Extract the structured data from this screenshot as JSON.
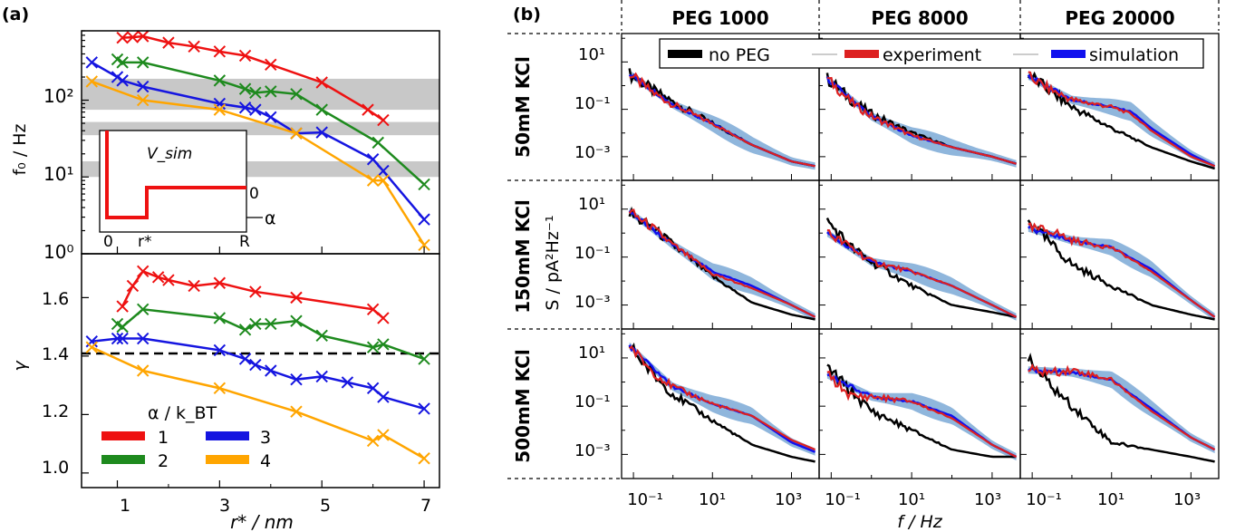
{
  "panel_a": {
    "label": "(a)",
    "top": {
      "ylabel": "f₀ / Hz",
      "yticks": [
        "10⁰",
        "10¹",
        "10²"
      ],
      "inset": {
        "title": "V_sim",
        "xticks": [
          "0",
          "r*",
          "R"
        ],
        "alpha_label": "α",
        "zero_label": "0"
      }
    },
    "bottom": {
      "ylabel": "γ",
      "yticks": [
        "1.0",
        "1.2",
        "1.4",
        "1.6"
      ],
      "xticks": [
        "1",
        "3",
        "5",
        "7"
      ],
      "xlabel": "r* / nm"
    },
    "legend": {
      "title": "α / k_BT",
      "entries": [
        "1",
        "2",
        "3",
        "4"
      ]
    }
  },
  "panel_b": {
    "label": "(b)",
    "columns": [
      "PEG 1000",
      "PEG 8000",
      "PEG 20000"
    ],
    "rows": [
      "50mM KCl",
      "150mM KCl",
      "500mM KCl"
    ],
    "legend": [
      "no PEG",
      "experiment",
      "simulation"
    ],
    "yticks": [
      "10¹",
      "10⁻¹",
      "10⁻³"
    ],
    "xticks": [
      "10⁻¹",
      "10¹",
      "10³"
    ],
    "xlabel": "f / Hz",
    "ylabel": "S / pA²Hz⁻¹"
  },
  "colors": {
    "alpha1": "#ee1111",
    "alpha2": "#1e8a1e",
    "alpha3": "#1515e0",
    "alpha4": "#ffa500",
    "no_peg": "#000000",
    "experiment": "#dd2020",
    "simulation": "#1010ee",
    "sim_band": "#8fb6dc",
    "gray_band": "#c8c8c8"
  },
  "chart_data": [
    {
      "type": "line",
      "panel": "a-top",
      "xlabel": "",
      "ylabel": "f₀ / Hz",
      "yscale": "log",
      "ylim": [
        1,
        800
      ],
      "xlim": [
        0.3,
        7.3
      ],
      "gray_bands_hz": [
        [
          75,
          190
        ],
        [
          35,
          52
        ],
        [
          10,
          16
        ]
      ],
      "series": [
        {
          "name": "1",
          "x": [
            1.1,
            1.3,
            1.5,
            2.0,
            2.5,
            3.0,
            3.5,
            4.0,
            5.0,
            5.9,
            6.2
          ],
          "y": [
            650,
            660,
            680,
            560,
            500,
            430,
            380,
            290,
            170,
            75,
            55
          ]
        },
        {
          "name": "2",
          "x": [
            1.0,
            1.1,
            1.5,
            3.0,
            3.5,
            3.7,
            4.0,
            4.5,
            5.0,
            6.1,
            7.0
          ],
          "y": [
            340,
            310,
            310,
            180,
            140,
            125,
            130,
            120,
            75,
            28,
            8
          ]
        },
        {
          "name": "3",
          "x": [
            0.5,
            1.0,
            1.1,
            1.5,
            3.0,
            3.5,
            3.7,
            4.0,
            4.5,
            5.0,
            6.0,
            6.2,
            7.0
          ],
          "y": [
            310,
            200,
            180,
            150,
            90,
            80,
            75,
            60,
            37,
            38,
            17,
            12,
            2.8
          ]
        },
        {
          "name": "4",
          "x": [
            0.5,
            1.5,
            3.0,
            4.5,
            6.0,
            6.2,
            7.0
          ],
          "y": [
            175,
            100,
            75,
            37,
            9,
            9,
            1.3
          ]
        }
      ]
    },
    {
      "type": "line",
      "panel": "a-bottom",
      "xlabel": "r* / nm",
      "ylabel": "γ",
      "ylim": [
        0.95,
        1.75
      ],
      "xlim": [
        0.3,
        7.3
      ],
      "reference_line": 1.4,
      "series": [
        {
          "name": "1",
          "x": [
            1.1,
            1.3,
            1.5,
            1.8,
            2.0,
            2.5,
            3.0,
            3.7,
            4.5,
            6.0,
            6.2
          ],
          "y": [
            1.57,
            1.64,
            1.69,
            1.67,
            1.66,
            1.64,
            1.65,
            1.62,
            1.6,
            1.56,
            1.53
          ]
        },
        {
          "name": "2",
          "x": [
            1.0,
            1.1,
            1.5,
            3.0,
            3.5,
            3.7,
            4.0,
            4.5,
            5.0,
            6.0,
            6.2,
            7.0
          ],
          "y": [
            1.51,
            1.5,
            1.56,
            1.53,
            1.49,
            1.51,
            1.51,
            1.52,
            1.47,
            1.43,
            1.44,
            1.39
          ]
        },
        {
          "name": "3",
          "x": [
            0.5,
            1.0,
            1.1,
            1.5,
            3.0,
            3.5,
            3.7,
            4.0,
            4.5,
            5.0,
            5.5,
            6.0,
            6.2,
            7.0
          ],
          "y": [
            1.45,
            1.46,
            1.46,
            1.46,
            1.42,
            1.39,
            1.37,
            1.35,
            1.32,
            1.33,
            1.31,
            1.29,
            1.26,
            1.22
          ]
        },
        {
          "name": "4",
          "x": [
            0.5,
            1.5,
            3.0,
            4.5,
            6.0,
            6.2,
            7.0
          ],
          "y": [
            1.43,
            1.35,
            1.29,
            1.21,
            1.11,
            1.13,
            1.05
          ]
        }
      ]
    },
    {
      "type": "line",
      "panel": "b",
      "xscale": "log",
      "yscale": "log",
      "xlim_log10": [
        -1.3,
        3.7
      ],
      "ylim_log10": [
        -4.0,
        2.2
      ],
      "xlabel": "f / Hz",
      "ylabel": "S / pA²Hz⁻¹",
      "grid": [
        {
          "row": "50mM KCl",
          "column": "PEG 1000",
          "no_peg": [
            [
              -1.1,
              0.5
            ],
            [
              -0.5,
              -0.2
            ],
            [
              0,
              -0.7
            ],
            [
              1,
              -1.6
            ],
            [
              2,
              -2.5
            ],
            [
              3,
              -3.2
            ],
            [
              3.6,
              -3.4
            ]
          ],
          "experiment": [
            [
              -1.1,
              0.5
            ],
            [
              -0.5,
              -0.3
            ],
            [
              0,
              -0.8
            ],
            [
              1,
              -1.6
            ],
            [
              2,
              -2.5
            ],
            [
              3,
              -3.2
            ],
            [
              3.6,
              -3.4
            ]
          ],
          "simulation": [
            [
              -1.1,
              0.5
            ],
            [
              0,
              -0.8
            ],
            [
              1,
              -1.6
            ],
            [
              2,
              -2.5
            ],
            [
              3,
              -3.2
            ],
            [
              3.6,
              -3.4
            ]
          ]
        },
        {
          "row": "50mM KCl",
          "column": "PEG 8000",
          "no_peg": [
            [
              -1.1,
              0.3
            ],
            [
              -0.5,
              -0.6
            ],
            [
              0,
              -1.2
            ],
            [
              1,
              -2.0
            ],
            [
              2,
              -2.6
            ],
            [
              3,
              -3.0
            ],
            [
              3.6,
              -3.3
            ]
          ],
          "experiment": [
            [
              -1.1,
              0.3
            ],
            [
              -0.5,
              -0.7
            ],
            [
              0,
              -1.3
            ],
            [
              1,
              -2.1
            ],
            [
              2,
              -2.6
            ],
            [
              3,
              -3.0
            ],
            [
              3.6,
              -3.3
            ]
          ],
          "simulation": [
            [
              -1.1,
              0.3
            ],
            [
              0,
              -1.3
            ],
            [
              1,
              -2.1
            ],
            [
              2,
              -2.6
            ],
            [
              3,
              -3.0
            ],
            [
              3.6,
              -3.3
            ]
          ]
        },
        {
          "row": "50mM KCl",
          "column": "PEG 20000",
          "no_peg": [
            [
              -1.1,
              0.5
            ],
            [
              -0.5,
              -0.3
            ],
            [
              0,
              -0.9
            ],
            [
              1,
              -1.8
            ],
            [
              2,
              -2.6
            ],
            [
              3,
              -3.2
            ],
            [
              3.6,
              -3.5
            ]
          ],
          "experiment": [
            [
              -1.1,
              0.4
            ],
            [
              -0.5,
              -0.2
            ],
            [
              0,
              -0.6
            ],
            [
              1,
              -0.9
            ],
            [
              1.5,
              -1.2
            ],
            [
              2,
              -1.9
            ],
            [
              3,
              -3.0
            ],
            [
              3.6,
              -3.4
            ]
          ],
          "simulation": [
            [
              -1.1,
              0.4
            ],
            [
              0,
              -0.6
            ],
            [
              1,
              -0.9
            ],
            [
              1.5,
              -1.1
            ],
            [
              2,
              -1.8
            ],
            [
              3,
              -2.9
            ],
            [
              3.6,
              -3.4
            ]
          ]
        },
        {
          "row": "150mM KCl",
          "column": "PEG 1000",
          "no_peg": [
            [
              -1.1,
              0.8
            ],
            [
              -0.5,
              0.2
            ],
            [
              0,
              -0.5
            ],
            [
              1,
              -1.8
            ],
            [
              2,
              -2.9
            ],
            [
              3,
              -3.4
            ],
            [
              3.6,
              -3.6
            ]
          ],
          "experiment": [
            [
              -1.1,
              0.9
            ],
            [
              -0.5,
              0.2
            ],
            [
              0,
              -0.5
            ],
            [
              1,
              -1.7
            ],
            [
              2,
              -2.3
            ],
            [
              3,
              -3.0
            ],
            [
              3.6,
              -3.5
            ]
          ],
          "simulation": [
            [
              -1.1,
              0.9
            ],
            [
              0,
              -0.5
            ],
            [
              1,
              -1.6
            ],
            [
              2,
              -2.2
            ],
            [
              3,
              -3.0
            ],
            [
              3.6,
              -3.5
            ]
          ]
        },
        {
          "row": "150mM KCl",
          "column": "PEG 8000",
          "no_peg": [
            [
              -1.1,
              0.5
            ],
            [
              -0.5,
              -0.6
            ],
            [
              0,
              -1.2
            ],
            [
              1,
              -2.2
            ],
            [
              2,
              -3.0
            ],
            [
              3,
              -3.3
            ],
            [
              3.6,
              -3.5
            ]
          ],
          "experiment": [
            [
              -1.1,
              0.0
            ],
            [
              -0.5,
              -0.6
            ],
            [
              0,
              -1.2
            ],
            [
              1,
              -1.6
            ],
            [
              2,
              -2.2
            ],
            [
              3,
              -3.0
            ],
            [
              3.6,
              -3.5
            ]
          ],
          "simulation": [
            [
              -1.1,
              0.0
            ],
            [
              0,
              -1.2
            ],
            [
              1,
              -1.6
            ],
            [
              2,
              -2.2
            ],
            [
              3,
              -3.0
            ],
            [
              3.6,
              -3.5
            ]
          ]
        },
        {
          "row": "150mM KCl",
          "column": "PEG 20000",
          "no_peg": [
            [
              -1.1,
              0.5
            ],
            [
              -0.5,
              -0.5
            ],
            [
              0,
              -1.3
            ],
            [
              1,
              -2.2
            ],
            [
              2,
              -3.0
            ],
            [
              3,
              -3.4
            ],
            [
              3.6,
              -3.6
            ]
          ],
          "experiment": [
            [
              -1.1,
              0.2
            ],
            [
              -0.5,
              0.1
            ],
            [
              0,
              -0.3
            ],
            [
              1,
              -0.6
            ],
            [
              2,
              -1.6
            ],
            [
              3,
              -2.8
            ],
            [
              3.6,
              -3.5
            ]
          ],
          "simulation": [
            [
              -1.1,
              0.2
            ],
            [
              0,
              -0.3
            ],
            [
              1,
              -0.6
            ],
            [
              2,
              -1.5
            ],
            [
              3,
              -2.8
            ],
            [
              3.6,
              -3.5
            ]
          ]
        },
        {
          "row": "500mM KCl",
          "column": "PEG 1000",
          "no_peg": [
            [
              -1.1,
              1.5
            ],
            [
              -0.5,
              0.3
            ],
            [
              0,
              -0.5
            ],
            [
              1,
              -1.6
            ],
            [
              2,
              -2.6
            ],
            [
              3,
              -3.1
            ],
            [
              3.6,
              -3.3
            ]
          ],
          "experiment": [
            [
              -1.1,
              1.5
            ],
            [
              -0.5,
              0.4
            ],
            [
              0,
              -0.2
            ],
            [
              1,
              -0.9
            ],
            [
              2,
              -1.4
            ],
            [
              3,
              -2.4
            ],
            [
              3.6,
              -2.8
            ]
          ],
          "simulation": [
            [
              -1.1,
              1.5
            ],
            [
              0,
              -0.2
            ],
            [
              1,
              -0.9
            ],
            [
              2,
              -1.4
            ],
            [
              3,
              -2.5
            ],
            [
              3.6,
              -2.9
            ]
          ]
        },
        {
          "row": "500mM KCl",
          "column": "PEG 8000",
          "no_peg": [
            [
              -1.1,
              0.6
            ],
            [
              -0.5,
              -0.4
            ],
            [
              0,
              -1.2
            ],
            [
              1,
              -2.0
            ],
            [
              2,
              -2.8
            ],
            [
              3,
              -3.1
            ],
            [
              3.6,
              -3.1
            ]
          ],
          "experiment": [
            [
              -1.1,
              0.3
            ],
            [
              -0.5,
              -0.6
            ],
            [
              0,
              -0.6
            ],
            [
              1,
              -0.8
            ],
            [
              2,
              -1.5
            ],
            [
              3,
              -2.6
            ],
            [
              3.6,
              -3.1
            ]
          ],
          "simulation": [
            [
              -1.1,
              0.3
            ],
            [
              0,
              -0.6
            ],
            [
              1,
              -0.8
            ],
            [
              2,
              -1.4
            ],
            [
              3,
              -2.6
            ],
            [
              3.6,
              -3.1
            ]
          ]
        },
        {
          "row": "500mM KCl",
          "column": "PEG 20000",
          "no_peg": [
            [
              -1.1,
              0.9
            ],
            [
              -0.5,
              -0.2
            ],
            [
              0,
              -1.0
            ],
            [
              1,
              -2.5
            ],
            [
              2,
              -2.8
            ],
            [
              3,
              -3.1
            ],
            [
              3.6,
              -3.3
            ]
          ],
          "experiment": [
            [
              -1.1,
              0.5
            ],
            [
              -0.5,
              0.4
            ],
            [
              0,
              0.5
            ],
            [
              1,
              0.1
            ],
            [
              2,
              -1.2
            ],
            [
              3,
              -2.3
            ],
            [
              3.6,
              -2.8
            ]
          ],
          "simulation": [
            [
              -1.1,
              0.5
            ],
            [
              0,
              0.4
            ],
            [
              1,
              0.1
            ],
            [
              2,
              -1.1
            ],
            [
              3,
              -2.3
            ],
            [
              3.6,
              -2.8
            ]
          ]
        }
      ]
    }
  ]
}
